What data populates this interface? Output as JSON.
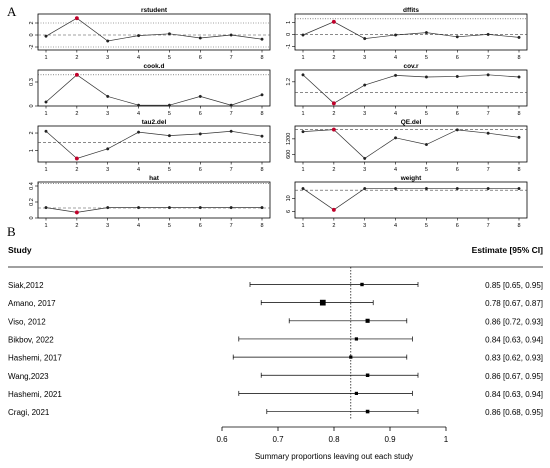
{
  "panel_a_letter": "A",
  "panel_b_letter": "B",
  "chart_data": [
    {
      "type": "line",
      "title": "rstudent",
      "x": [
        1,
        2,
        3,
        4,
        5,
        6,
        7,
        8
      ],
      "values": [
        -0.2,
        2.8,
        -1.0,
        -0.1,
        0.2,
        -0.5,
        0.0,
        -0.7
      ],
      "highlight_index": 1,
      "ylim": [
        -2.5,
        3.5
      ],
      "yticks": [
        -2,
        0,
        2
      ],
      "ref_dashed": 0,
      "ref_dotted": [
        -2,
        2
      ]
    },
    {
      "type": "line",
      "title": "dffits",
      "x": [
        1,
        2,
        3,
        4,
        5,
        6,
        7,
        8
      ],
      "values": [
        -0.05,
        1.05,
        -0.35,
        -0.05,
        0.15,
        -0.2,
        0.0,
        -0.25
      ],
      "highlight_index": 1,
      "ylim": [
        -1.3,
        1.7
      ],
      "yticks": [
        -1.0,
        0.0,
        1.0
      ],
      "ref_dashed": 0,
      "ref_dotted": [
        1.3
      ]
    },
    {
      "type": "line",
      "title": "cook.d",
      "x": [
        1,
        2,
        3,
        4,
        5,
        6,
        7,
        8
      ],
      "values": [
        0.05,
        0.39,
        0.12,
        0.01,
        0.01,
        0.12,
        0.01,
        0.14
      ],
      "highlight_index": 1,
      "ylim": [
        0,
        0.45
      ],
      "yticks": [
        0.0,
        0.3
      ],
      "ref_dashed": null,
      "ref_dotted": [
        0.39
      ]
    },
    {
      "type": "line",
      "title": "cov.r",
      "x": [
        1,
        2,
        3,
        4,
        5,
        6,
        7,
        8
      ],
      "values": [
        1.33,
        0.8,
        1.14,
        1.32,
        1.29,
        1.3,
        1.33,
        1.29
      ],
      "highlight_index": 1,
      "ylim": [
        0.75,
        1.42
      ],
      "yticks": [
        1.2
      ],
      "ref_dashed": 1.0,
      "ref_dotted": []
    },
    {
      "type": "line",
      "title": "tau2.del",
      "x": [
        1,
        2,
        3,
        4,
        5,
        6,
        7,
        8
      ],
      "values": [
        2.1,
        0.55,
        1.1,
        2.05,
        1.85,
        1.95,
        2.1,
        1.82
      ],
      "highlight_index": 1,
      "ylim": [
        0.35,
        2.4
      ],
      "yticks": [
        1.0,
        2.0
      ],
      "ref_dashed": 1.45,
      "ref_dotted": []
    },
    {
      "type": "line",
      "title": "QE.del",
      "x": [
        1,
        2,
        3,
        4,
        5,
        6,
        7,
        8
      ],
      "values": [
        1480,
        1560,
        440,
        1240,
        980,
        1550,
        1420,
        1260
      ],
      "highlight_index": 1,
      "ylim": [
        300,
        1700
      ],
      "yticks": [
        600,
        1200
      ],
      "ref_dashed": 1560,
      "ref_dotted": []
    },
    {
      "type": "line",
      "title": "hat",
      "x": [
        1,
        2,
        3,
        4,
        5,
        6,
        7,
        8
      ],
      "values": [
        0.13,
        0.07,
        0.13,
        0.13,
        0.13,
        0.13,
        0.13,
        0.13
      ],
      "highlight_index": 1,
      "ylim": [
        0,
        0.45
      ],
      "yticks": [
        0.0,
        0.2,
        0.4
      ],
      "ref_dashed": 0.125,
      "ref_dotted": [
        0.43
      ]
    },
    {
      "type": "line",
      "title": "weight",
      "x": [
        1,
        2,
        3,
        4,
        5,
        6,
        7,
        8
      ],
      "values": [
        13.0,
        6.5,
        13.0,
        13.0,
        13.0,
        13.0,
        13.0,
        13.0
      ],
      "highlight_index": 1,
      "ylim": [
        4,
        15
      ],
      "yticks": [
        6,
        10
      ],
      "ref_dashed": 12.5,
      "ref_dotted": []
    },
    {
      "type": "scatter",
      "header_study": "Study",
      "header_estimate": "Estimate [95% CI]",
      "studies": [
        "Siak,2012",
        "Amano, 2017",
        "Viso, 2012",
        "Bikbov,  2022",
        "Hashemi, 2017",
        "Wang,2023",
        "Hashemi, 2021",
        "Cragi, 2021"
      ],
      "estimates": [
        0.85,
        0.78,
        0.86,
        0.84,
        0.83,
        0.86,
        0.84,
        0.86
      ],
      "ci_lower": [
        0.65,
        0.67,
        0.72,
        0.63,
        0.62,
        0.67,
        0.63,
        0.68
      ],
      "ci_upper": [
        0.95,
        0.87,
        0.93,
        0.94,
        0.93,
        0.95,
        0.94,
        0.95
      ],
      "estimate_labels": [
        "0.85 [0.65, 0.95]",
        "0.78 [0.67, 0.87]",
        "0.86 [0.72, 0.93]",
        "0.84 [0.63, 0.94]",
        "0.83 [0.62, 0.93]",
        "0.86 [0.67, 0.95]",
        "0.84 [0.63, 0.94]",
        "0.86 [0.68, 0.95]"
      ],
      "weights": [
        1.2,
        5.1,
        2.1,
        1.0,
        1.0,
        1.3,
        1.0,
        1.4
      ],
      "summary_line": 0.83,
      "xlim": [
        0.6,
        1.0
      ],
      "xticks": [
        "0.6",
        "0.7",
        "0.8",
        "0.9",
        "1"
      ],
      "xlabel": "Summary proportions leaving out each study"
    }
  ]
}
